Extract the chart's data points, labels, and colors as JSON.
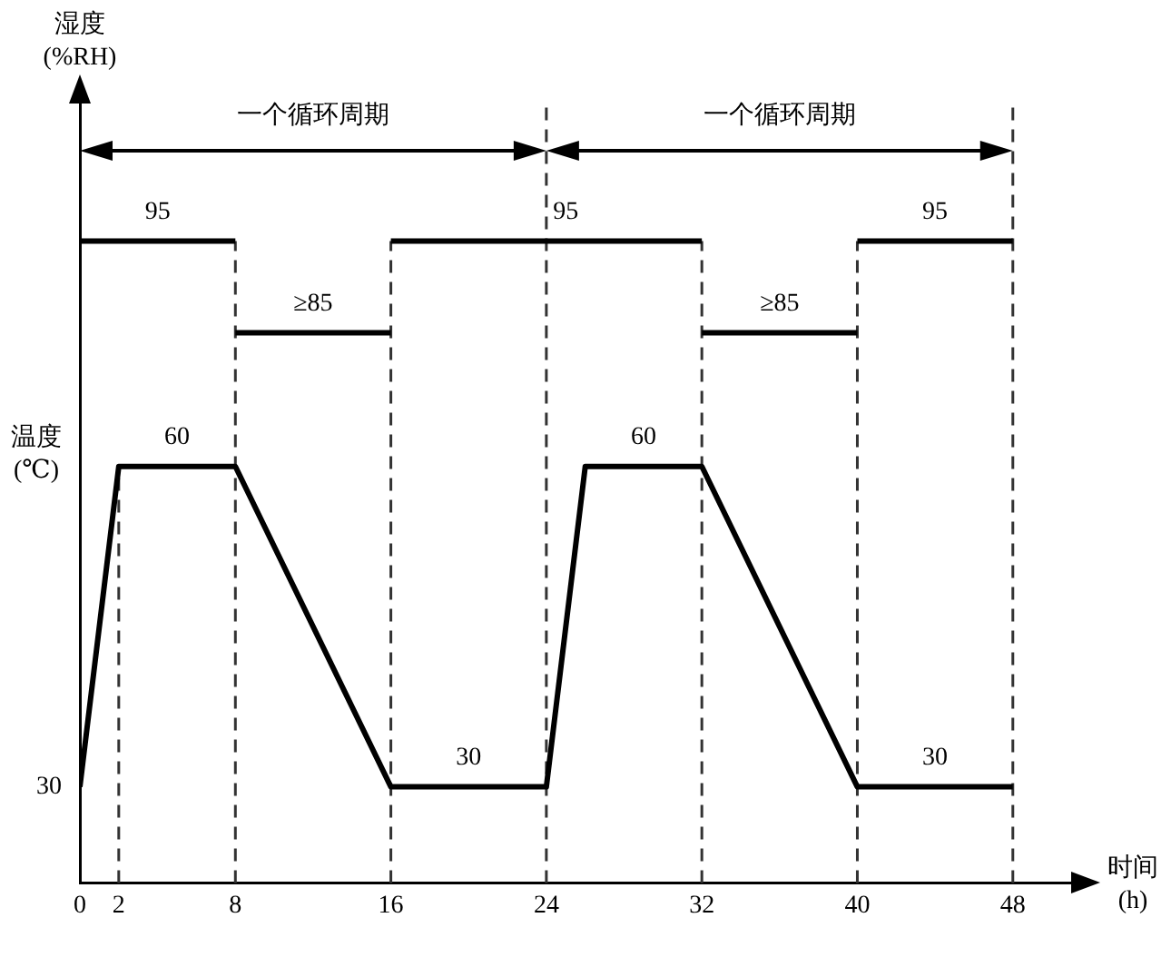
{
  "chart_data": {
    "type": "line",
    "xlabel": "时间 (h)",
    "ylabel": "温度 (℃)",
    "y2label": "湿度 (%RH)",
    "xlim": [
      0,
      51
    ],
    "xticks": [
      0,
      2,
      8,
      16,
      24,
      32,
      40,
      48
    ],
    "ylim": [
      21,
      94
    ],
    "y2lim": [
      25,
      110
    ],
    "series": [
      {
        "color": "#000000",
        "axis": "y2",
        "x": [
          0,
          4,
          8,
          8,
          12,
          16,
          16,
          25,
          32,
          32,
          36,
          40,
          40,
          44,
          48
        ],
        "values": [
          95,
          95,
          95,
          85,
          85,
          85,
          95,
          95,
          95,
          85,
          85,
          85,
          95,
          95,
          95
        ],
        "value_labels": [
          null,
          "95",
          null,
          null,
          "≥85",
          null,
          null,
          "95",
          null,
          null,
          "≥85",
          null,
          null,
          "95",
          null
        ]
      },
      {
        "color": "#000000",
        "x": [
          0,
          2,
          5,
          8,
          16,
          20,
          24,
          26,
          29,
          32,
          40,
          44,
          48
        ],
        "values": [
          30,
          60,
          60,
          60,
          30,
          30,
          30,
          60,
          60,
          60,
          30,
          30,
          30
        ],
        "value_labels": [
          "30",
          null,
          "60",
          null,
          null,
          "30",
          null,
          null,
          "60",
          null,
          null,
          "30",
          null
        ]
      }
    ],
    "ref_lines": [
      {
        "axis": "x",
        "value": 2,
        "line_style": "dashed",
        "color": "#333333"
      },
      {
        "axis": "x",
        "value": 8,
        "line_style": "dashed",
        "color": "#333333"
      },
      {
        "axis": "x",
        "value": 16,
        "line_style": "dashed",
        "color": "#333333"
      },
      {
        "axis": "x",
        "value": 24,
        "line_style": "dashed",
        "color": "#333333"
      },
      {
        "axis": "x",
        "value": 32,
        "line_style": "dashed",
        "color": "#333333"
      },
      {
        "axis": "x",
        "value": 40,
        "line_style": "dashed",
        "color": "#333333"
      },
      {
        "axis": "x",
        "value": 48,
        "line_style": "dashed",
        "color": "#333333"
      }
    ],
    "annotations": [
      "一个循环周期",
      "一个循环周期"
    ],
    "legend": false,
    "grid": false,
    "marker": "none"
  }
}
